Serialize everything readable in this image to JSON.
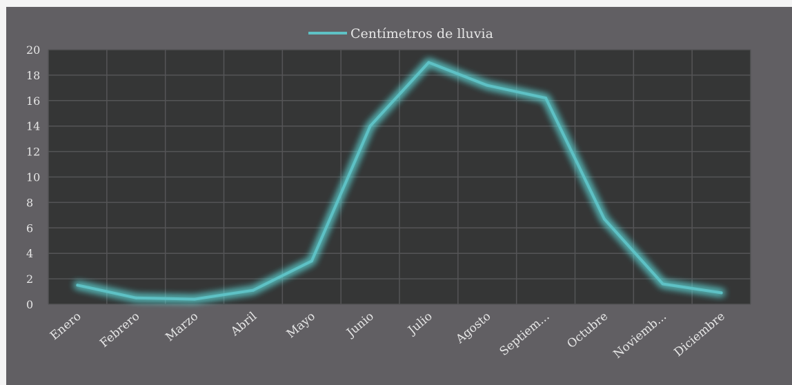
{
  "chart_data": {
    "type": "line",
    "legend": {
      "label": "Centímetros de lluvia",
      "placement": "top-center"
    },
    "categories": [
      "Enero",
      "Febrero",
      "Marzo",
      "Abril",
      "Mayo",
      "Junio",
      "Julio",
      "Agosto",
      "Septiem...",
      "Octubre",
      "Noviemb...",
      "Diciembre"
    ],
    "series": [
      {
        "name": "Centímetros de lluvia",
        "values": [
          1.5,
          0.5,
          0.4,
          1.1,
          3.4,
          14.0,
          19.0,
          17.2,
          16.2,
          6.7,
          1.6,
          0.9
        ]
      }
    ],
    "ylim": [
      0,
      20
    ],
    "yticks": [
      0,
      2,
      4,
      6,
      8,
      10,
      12,
      14,
      16,
      18,
      20
    ],
    "grid": true,
    "colors": {
      "line": "#5ec1c5",
      "glow": "#5fe3e3",
      "plot_background": "#353636",
      "panel_background": "#615f63",
      "grid": "#555557",
      "text": "#e6e6e6"
    }
  }
}
